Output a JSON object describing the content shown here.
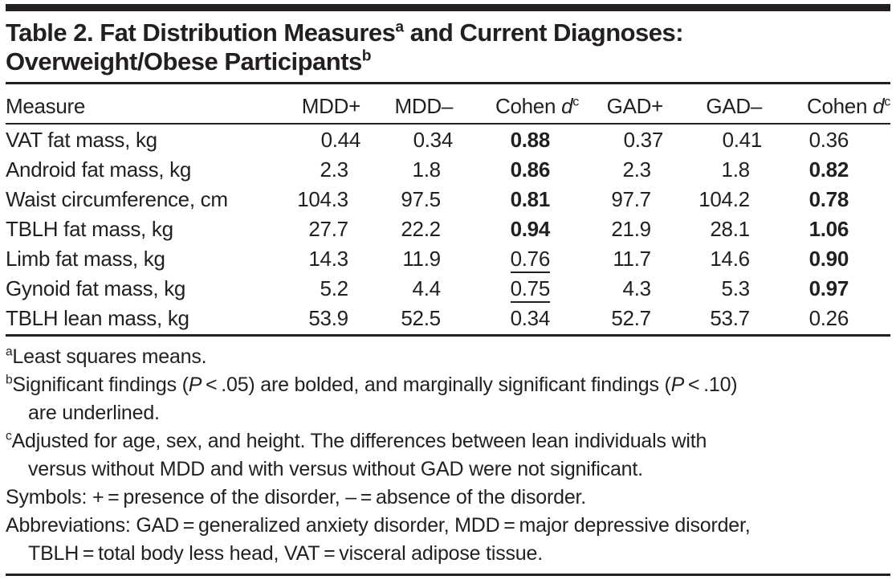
{
  "colors": {
    "text": "#231f20",
    "background": "#ffffff"
  },
  "title": {
    "lines": [
      {
        "segments": [
          {
            "s": "",
            "t": "Table 2. Fat Distribution Measures"
          },
          {
            "s": "sup",
            "t": "a"
          },
          {
            "s": "",
            "t": " and Current Diagnoses:"
          }
        ]
      },
      {
        "segments": [
          {
            "s": "",
            "t": "Overweight/Obese Participants"
          },
          {
            "s": "sup",
            "t": "b"
          }
        ]
      }
    ]
  },
  "table": {
    "columns": [
      {
        "segments": [
          {
            "s": "",
            "t": "Measure"
          }
        ]
      },
      {
        "segments": [
          {
            "s": "",
            "t": "MDD+"
          }
        ]
      },
      {
        "segments": [
          {
            "s": "",
            "t": "MDD–"
          }
        ]
      },
      {
        "segments": [
          {
            "s": "",
            "t": "Cohen "
          },
          {
            "s": "i",
            "t": "d"
          },
          {
            "s": "sup",
            "t": "c"
          }
        ]
      },
      {
        "segments": [
          {
            "s": "",
            "t": "GAD+"
          }
        ]
      },
      {
        "segments": [
          {
            "s": "",
            "t": "GAD–"
          }
        ]
      },
      {
        "segments": [
          {
            "s": "",
            "t": "Cohen "
          },
          {
            "s": "i",
            "t": "d"
          },
          {
            "s": "sup",
            "t": "c"
          }
        ]
      }
    ],
    "rows": [
      {
        "measure": "VAT fat mass, kg",
        "values": [
          "0.44",
          "0.34",
          "0.88",
          "0.37",
          "0.41",
          "0.36"
        ],
        "styles": [
          "",
          "",
          "bold",
          "",
          "",
          ""
        ]
      },
      {
        "measure": "Android fat mass, kg",
        "values": [
          "2.3",
          "1.8",
          "0.86",
          "2.3",
          "1.8",
          "0.82"
        ],
        "styles": [
          "",
          "",
          "bold",
          "",
          "",
          "bold"
        ]
      },
      {
        "measure": "Waist circumference, cm",
        "values": [
          "104.3",
          "97.5",
          "0.81",
          "97.7",
          "104.2",
          "0.78"
        ],
        "styles": [
          "",
          "",
          "bold",
          "",
          "",
          "bold"
        ]
      },
      {
        "measure": "TBLH fat mass, kg",
        "values": [
          "27.7",
          "22.2",
          "0.94",
          "21.9",
          "28.1",
          "1.06"
        ],
        "styles": [
          "",
          "",
          "bold",
          "",
          "",
          "bold"
        ]
      },
      {
        "measure": "Limb fat mass, kg",
        "values": [
          "14.3",
          "11.9",
          "0.76",
          "11.7",
          "14.6",
          "0.90"
        ],
        "styles": [
          "",
          "",
          "underline",
          "",
          "",
          "bold"
        ]
      },
      {
        "measure": "Gynoid fat mass, kg",
        "values": [
          "5.2",
          "4.4",
          "0.75",
          "4.3",
          "5.3",
          "0.97"
        ],
        "styles": [
          "",
          "",
          "underline",
          "",
          "",
          "bold"
        ]
      },
      {
        "measure": "TBLH lean mass, kg",
        "values": [
          "53.9",
          "52.5",
          "0.34",
          "52.7",
          "53.7",
          "0.26"
        ],
        "styles": [
          "",
          "",
          "",
          "",
          "",
          ""
        ]
      }
    ]
  },
  "footnotes": [
    {
      "indent": false,
      "segments": [
        {
          "s": "sup",
          "t": "a"
        },
        {
          "s": "",
          "t": "Least squares means."
        }
      ]
    },
    {
      "indent": false,
      "segments": [
        {
          "s": "sup",
          "t": "b"
        },
        {
          "s": "",
          "t": "Significant findings ("
        },
        {
          "s": "i",
          "t": "P"
        },
        {
          "s": "",
          "t": " < .05) are bolded, and marginally significant findings ("
        },
        {
          "s": "i",
          "t": "P"
        },
        {
          "s": "",
          "t": " < .10)"
        }
      ]
    },
    {
      "indent": true,
      "segments": [
        {
          "s": "",
          "t": "are underlined."
        }
      ]
    },
    {
      "indent": false,
      "segments": [
        {
          "s": "sup",
          "t": "c"
        },
        {
          "s": "",
          "t": "Adjusted for age, sex, and height. The differences between lean individuals with"
        }
      ]
    },
    {
      "indent": true,
      "segments": [
        {
          "s": "",
          "t": "versus without MDD and with versus without GAD were not significant."
        }
      ]
    },
    {
      "indent": false,
      "segments": [
        {
          "s": "",
          "t": "Symbols: + = presence of the disorder, – = absence of the disorder."
        }
      ]
    },
    {
      "indent": false,
      "segments": [
        {
          "s": "",
          "t": "Abbreviations: GAD = generalized anxiety disorder, MDD = major depressive disorder,"
        }
      ]
    },
    {
      "indent": true,
      "segments": [
        {
          "s": "",
          "t": "TBLH = total body less head, VAT = visceral adipose tissue."
        }
      ]
    }
  ]
}
